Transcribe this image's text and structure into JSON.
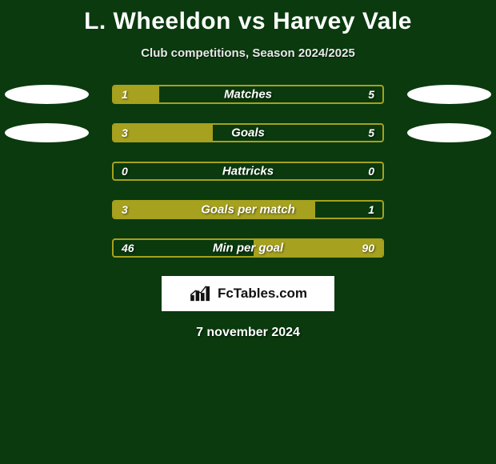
{
  "colors": {
    "background": "#0a3a0e",
    "accent": "#a6a11e",
    "text": "#ffffff",
    "ellipse": "#ffffff",
    "brand_bg": "#ffffff",
    "brand_text": "#111111"
  },
  "title": {
    "player1": "L. Wheeldon",
    "vs": "vs",
    "player2": "Harvey Vale"
  },
  "subtitle": "Club competitions, Season 2024/2025",
  "bar": {
    "track_width": 340,
    "track_height": 24,
    "border_radius": 4,
    "border_width": 2
  },
  "ellipse": {
    "width": 105,
    "height": 24
  },
  "typography": {
    "title_fontsize": 30,
    "subtitle_fontsize": 15,
    "metric_fontsize": 15,
    "value_fontsize": 14,
    "date_fontsize": 16
  },
  "rows": [
    {
      "label": "Matches",
      "left_value": "1",
      "right_value": "5",
      "left_fill_pct": 17,
      "right_fill_pct": 0,
      "show_left_ellipse": true,
      "show_right_ellipse": true
    },
    {
      "label": "Goals",
      "left_value": "3",
      "right_value": "5",
      "left_fill_pct": 37,
      "right_fill_pct": 0,
      "show_left_ellipse": true,
      "show_right_ellipse": true
    },
    {
      "label": "Hattricks",
      "left_value": "0",
      "right_value": "0",
      "left_fill_pct": 0,
      "right_fill_pct": 0,
      "show_left_ellipse": false,
      "show_right_ellipse": false
    },
    {
      "label": "Goals per match",
      "left_value": "3",
      "right_value": "1",
      "left_fill_pct": 75,
      "right_fill_pct": 0,
      "show_left_ellipse": false,
      "show_right_ellipse": false
    },
    {
      "label": "Min per goal",
      "left_value": "46",
      "right_value": "90",
      "left_fill_pct": 0,
      "right_fill_pct": 48,
      "show_left_ellipse": false,
      "show_right_ellipse": false
    }
  ],
  "brand": "FcTables.com",
  "date": "7 november 2024"
}
